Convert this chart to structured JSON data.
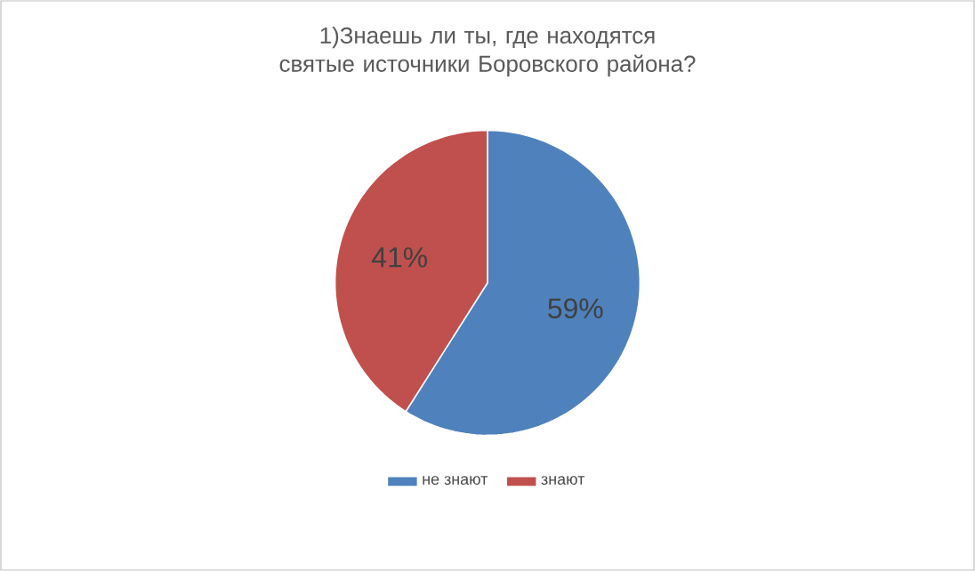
{
  "chart_data": {
    "type": "pie",
    "title": "1)Знаешь ли ты, где находятся святые источники Боровского района?",
    "categories": [
      "не знают",
      "знают"
    ],
    "values": [
      59,
      41
    ],
    "colors": [
      "#4f81bd",
      "#c0504d"
    ],
    "value_labels": [
      "59%",
      "41%"
    ],
    "legend": "bottom"
  }
}
